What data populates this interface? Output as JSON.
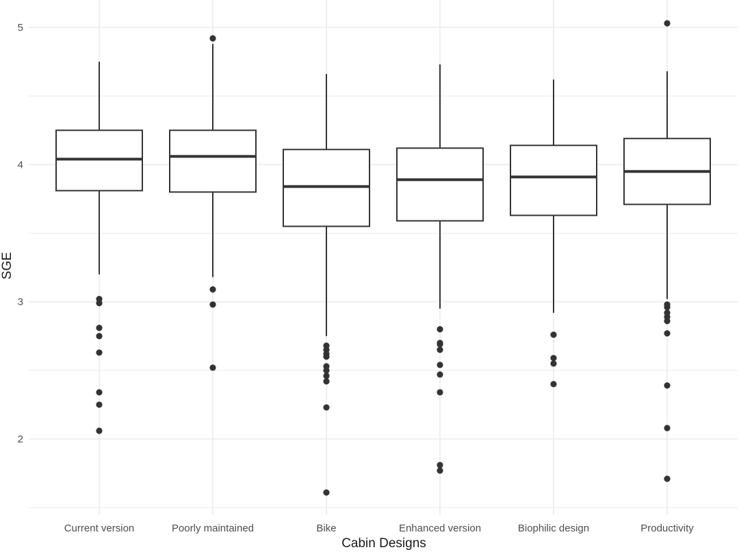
{
  "chart_data": {
    "type": "boxplot",
    "xlabel": "Cabin Designs",
    "ylabel": "SGE",
    "ylim": [
      1.5,
      5.2
    ],
    "yticks": [
      2,
      3,
      4,
      5
    ],
    "ytick_labels": [
      "2",
      "3",
      "4",
      "5"
    ],
    "grid": true,
    "colors": {
      "grid": "#ebebeb",
      "box_line": "#333333",
      "box_fill": "#ffffff",
      "point": "#333333",
      "tick_text": "#4d4d4d",
      "title_text": "#1a1a1a"
    },
    "categories": [
      "Current version",
      "Poorly maintained",
      "Bike",
      "Enhanced version",
      "Biophilic design",
      "Productivity"
    ],
    "series": [
      {
        "name": "Current version",
        "whisker_low": 3.2,
        "q1": 3.81,
        "median": 4.04,
        "q3": 4.25,
        "whisker_high": 4.75,
        "outliers": [
          3.02,
          2.99,
          2.81,
          2.75,
          2.63,
          2.34,
          2.25,
          2.06
        ]
      },
      {
        "name": "Poorly maintained",
        "whisker_low": 3.18,
        "q1": 3.8,
        "median": 4.06,
        "q3": 4.25,
        "whisker_high": 4.88,
        "outliers": [
          4.92,
          3.09,
          2.98,
          2.52
        ]
      },
      {
        "name": "Bike",
        "whisker_low": 2.75,
        "q1": 3.55,
        "median": 3.84,
        "q3": 4.11,
        "whisker_high": 4.66,
        "outliers": [
          2.68,
          2.65,
          2.62,
          2.6,
          2.53,
          2.5,
          2.46,
          2.42,
          2.23,
          1.61
        ]
      },
      {
        "name": "Enhanced version",
        "whisker_low": 2.95,
        "q1": 3.59,
        "median": 3.89,
        "q3": 4.12,
        "whisker_high": 4.73,
        "outliers": [
          2.8,
          2.7,
          2.69,
          2.65,
          2.54,
          2.47,
          2.34,
          1.81,
          1.77
        ]
      },
      {
        "name": "Biophilic design",
        "whisker_low": 2.92,
        "q1": 3.63,
        "median": 3.91,
        "q3": 4.14,
        "whisker_high": 4.62,
        "outliers": [
          2.76,
          2.59,
          2.55,
          2.4
        ]
      },
      {
        "name": "Productivity",
        "whisker_low": 3.02,
        "q1": 3.71,
        "median": 3.95,
        "q3": 4.19,
        "whisker_high": 4.68,
        "outliers": [
          5.03,
          2.98,
          2.96,
          2.92,
          2.89,
          2.86,
          2.77,
          2.39,
          2.08,
          1.71
        ]
      }
    ]
  }
}
